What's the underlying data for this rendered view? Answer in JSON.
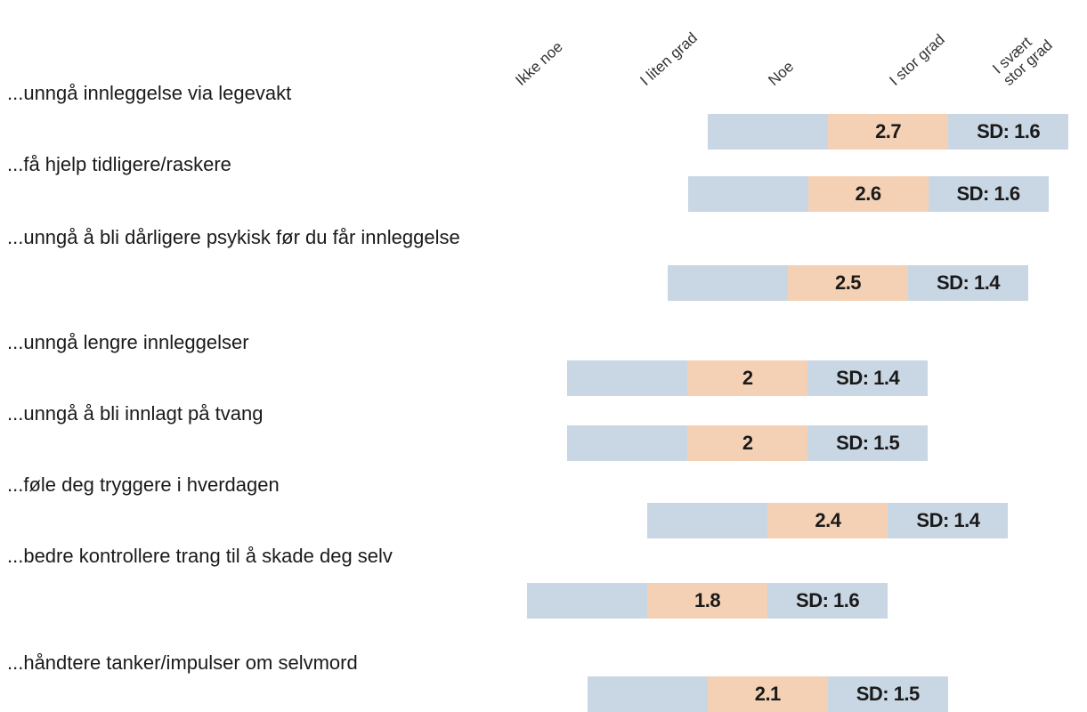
{
  "chart_data": {
    "type": "mean-sd-bars",
    "scale_labels": [
      "Ikke noe",
      "I liten grad",
      "Noe",
      "I stor grad",
      "I svært stor grad"
    ],
    "categories": [
      "...unngå innleggelse via legevakt",
      "...få hjelp tidligere/raskere",
      "...unngå å bli dårligere psykisk før du får innleggelse",
      "...unngå lengre innleggelser",
      "...unngå å bli innlagt på tvang",
      "...føle deg tryggere i hverdagen",
      "...bedre kontrollere trang til å skade deg selv",
      "...håndtere tanker/impulser om selvmord"
    ],
    "values": [
      2.7,
      2.6,
      2.5,
      2,
      2,
      2.4,
      1.8,
      2.1
    ],
    "sd": [
      1.6,
      1.6,
      1.4,
      1.4,
      1.5,
      1.4,
      1.6,
      1.5
    ],
    "sd_labels": [
      "SD: 1.6",
      "SD: 1.6",
      "SD: 1.4",
      "SD: 1.4",
      "SD: 1.5",
      "SD: 1.4",
      "SD: 1.6",
      "SD: 1.5"
    ],
    "mean_color": "#f4d1b5",
    "band_color": "#c9d6e3"
  }
}
